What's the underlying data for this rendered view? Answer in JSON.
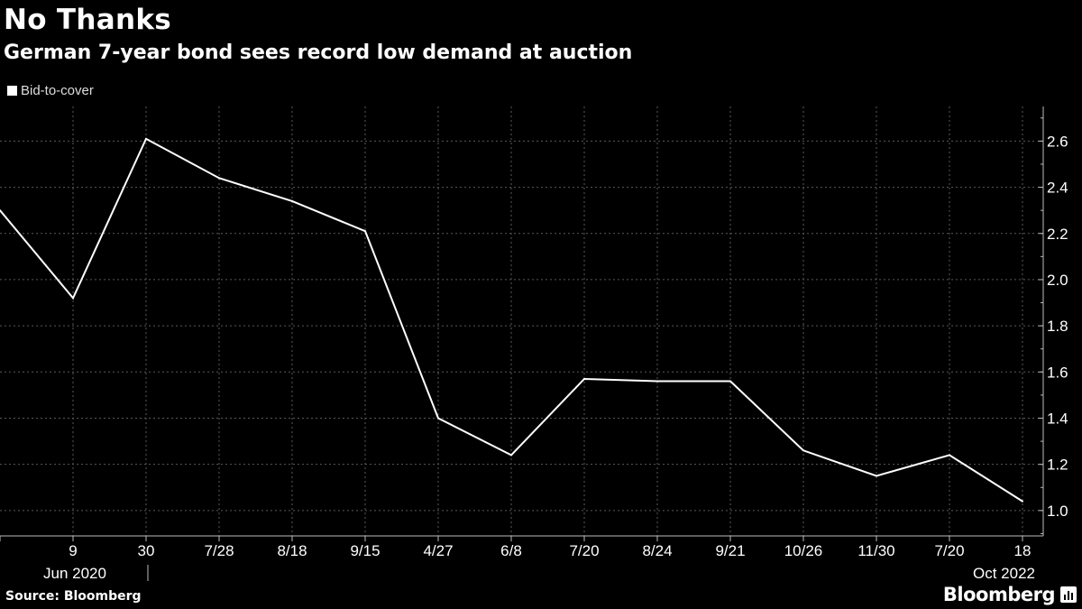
{
  "header": {
    "title": "No Thanks",
    "subtitle": "German 7-year bond sees record low demand at auction"
  },
  "legend": {
    "label": "Bid-to-cover",
    "swatch_color": "#ffffff"
  },
  "footer": {
    "source": "Source: Bloomberg",
    "brand": "Bloomberg"
  },
  "chart_data": {
    "type": "line",
    "background": "#000000",
    "line_color": "#ffffff",
    "grid": true,
    "legend_position": "top-left",
    "x": [
      "",
      "9",
      "30",
      "7/28",
      "8/18",
      "9/15",
      "4/27",
      "6/8",
      "7/20",
      "8/24",
      "9/21",
      "10/26",
      "11/30",
      "7/20",
      "18"
    ],
    "x_period_labels": [
      {
        "label": "Jun 2020",
        "at_index": 1
      },
      {
        "label": "Oct 2022",
        "at_index": 14
      }
    ],
    "series": [
      {
        "name": "Bid-to-cover",
        "values": [
          2.3,
          1.92,
          2.61,
          2.44,
          2.34,
          2.21,
          1.4,
          1.24,
          1.57,
          1.56,
          1.56,
          1.26,
          1.15,
          1.24,
          1.04
        ]
      }
    ],
    "yticks": [
      1.0,
      1.2,
      1.4,
      1.6,
      1.8,
      2.0,
      2.2,
      2.4,
      2.6
    ],
    "ylim": [
      0.89,
      2.75
    ],
    "y_axis_side": "right",
    "xlabel": "",
    "ylabel": ""
  }
}
